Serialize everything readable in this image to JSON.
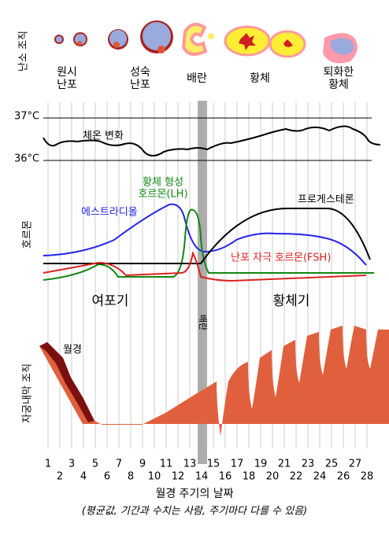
{
  "ovary": {
    "label": "난소 조직",
    "stages": [
      [
        "원시",
        "난포"
      ],
      [
        "성숙",
        "난포"
      ],
      [
        "배란"
      ],
      [
        "황체"
      ],
      [
        "퇴화한",
        "황체"
      ]
    ]
  },
  "temperature": {
    "title": "체온 변화",
    "ticks": [
      "37°C",
      "36°C"
    ]
  },
  "hormones": {
    "label": "호르몬",
    "lh": [
      "황체 형성",
      "호르몬(LH)"
    ],
    "estradiol": "에스트라디올",
    "progesterone": "프로게스테론",
    "fsh": "난포 자극 호르몬(FSH)",
    "phases": [
      "여포기",
      "황체기"
    ],
    "ovulation": "배란"
  },
  "endometrium": {
    "label": "자궁내막 조직",
    "menses": "월경"
  },
  "days": [
    1,
    2,
    3,
    4,
    5,
    6,
    7,
    8,
    9,
    10,
    11,
    12,
    13,
    14,
    15,
    16,
    17,
    18,
    19,
    20,
    21,
    22,
    23,
    24,
    25,
    26,
    27,
    28
  ],
  "x_title": "월경 주기의 날짜",
  "footnote": "(평균값, 기간과 수치는 사람, 주기마다 다를 수 있음)"
}
